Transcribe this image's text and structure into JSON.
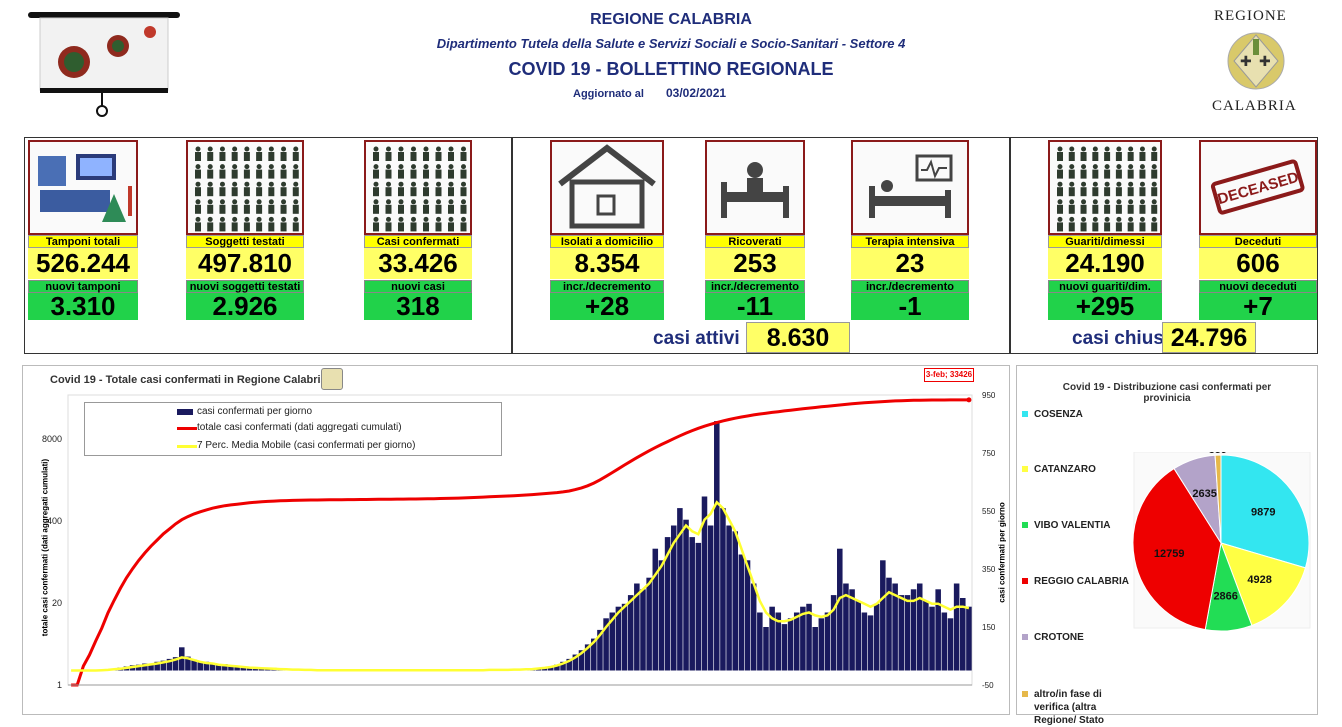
{
  "header": {
    "region": "REGIONE CALABRIA",
    "department": "Dipartimento Tutela della Salute e Servizi Sociali e Socio-Sanitari - Settore 4",
    "bulletin": "COVID 19 - BOLLETTINO REGIONALE",
    "updated_label": "Aggiornato al",
    "updated_date": "03/02/2021",
    "logo_top": "REGIONE",
    "logo_bottom": "CALABRIA"
  },
  "stats": {
    "tamponi": {
      "label": "Tamponi totali",
      "value": "526.244",
      "new_label": "nuovi tamponi",
      "new_value": "3.310"
    },
    "soggetti": {
      "label": "Soggetti testati",
      "value": "497.810",
      "new_label": "nuovi soggetti testati",
      "new_value": "2.926"
    },
    "casi": {
      "label": "Casi confermati",
      "value": "33.426",
      "new_label": "nuovi casi",
      "new_value": "318"
    },
    "isolati": {
      "label": "Isolati a domicilio",
      "value": "8.354",
      "new_label": "incr./decremento",
      "new_value": "+28"
    },
    "ricoverati": {
      "label": "Ricoverati",
      "value": "253",
      "new_label": "incr./decremento",
      "new_value": "-11"
    },
    "terapia": {
      "label": "Terapia intensiva",
      "value": "23",
      "new_label": "incr./decremento",
      "new_value": "-1"
    },
    "guariti": {
      "label": "Guariti/dimessi",
      "value": "24.190",
      "new_label": "nuovi guariti/dim.",
      "new_value": "+295"
    },
    "deceduti": {
      "label": "Deceduti",
      "value": "606",
      "new_label": "nuovi deceduti",
      "new_value": "+7"
    },
    "attivi": {
      "label": "casi attivi",
      "value": "8.630"
    },
    "chiusi": {
      "label": "casi chiusi",
      "value": "24.796"
    },
    "deceased_stamp": "DECEASED"
  },
  "chart_data": [
    {
      "type": "line",
      "title": "Covid 19 - Totale casi confermati in Regione Calabria",
      "ylabel": "totale casi confermati (dati aggregati cumulati)",
      "y2label": "casi confermati per giorno",
      "left_ticks": [
        "8000",
        "400",
        "20",
        "1"
      ],
      "right_ticks": [
        "950",
        "750",
        "550",
        "350",
        "150",
        "-50"
      ],
      "annotation": "3-feb; 33426",
      "series": [
        {
          "name": "casi confermati per giorno",
          "kind": "bar",
          "color": "#1a1a5e",
          "values": [
            0,
            0,
            0,
            0,
            0,
            2,
            4,
            6,
            10,
            14,
            18,
            20,
            24,
            22,
            30,
            34,
            40,
            46,
            80,
            48,
            38,
            28,
            30,
            26,
            20,
            22,
            18,
            16,
            14,
            10,
            12,
            10,
            8,
            9,
            7,
            5,
            4,
            3,
            2,
            2,
            1,
            1,
            1,
            1,
            0,
            1,
            1,
            0,
            1,
            0,
            0,
            1,
            0,
            0,
            1,
            1,
            0,
            0,
            1,
            0,
            1,
            1,
            0,
            1,
            1,
            2,
            1,
            2,
            2,
            1,
            1,
            2,
            3,
            2,
            4,
            5,
            8,
            10,
            14,
            20,
            30,
            40,
            55,
            70,
            90,
            110,
            140,
            180,
            200,
            220,
            230,
            260,
            300,
            280,
            320,
            420,
            380,
            460,
            500,
            560,
            520,
            460,
            440,
            600,
            500,
            860,
            560,
            500,
            480,
            400,
            380,
            300,
            200,
            150,
            220,
            200,
            160,
            180,
            200,
            220,
            230,
            150,
            180,
            200,
            260,
            420,
            300,
            280,
            240,
            200,
            190,
            230,
            380,
            320,
            300,
            260,
            260,
            280,
            300,
            240,
            220,
            280,
            200,
            180,
            300,
            250,
            220
          ]
        },
        {
          "name": "totale casi confermati (dati aggregati cumulati)",
          "kind": "line",
          "color": "#ee0000",
          "values": [
            1,
            1,
            2,
            3,
            5,
            8,
            14,
            22,
            34,
            50,
            70,
            95,
            125,
            160,
            200,
            250,
            300,
            360,
            420,
            470,
            520,
            560,
            600,
            640,
            670,
            700,
            720,
            740,
            760,
            780,
            795,
            810,
            820,
            830,
            840,
            845,
            850,
            855,
            860,
            862,
            864,
            866,
            868,
            870,
            872,
            874,
            876,
            878,
            880,
            882,
            884,
            886,
            888,
            890,
            892,
            894,
            896,
            898,
            900,
            905,
            910,
            915,
            920,
            925,
            930,
            940,
            950,
            960,
            970,
            980,
            990,
            1000,
            1010,
            1020,
            1035,
            1050,
            1070,
            1090,
            1110,
            1130,
            1160,
            1200,
            1260,
            1340,
            1450,
            1600,
            1800,
            2050,
            2350,
            2700,
            3100,
            3550,
            4050,
            4600,
            5200,
            5850,
            6550,
            7300,
            8100,
            9000,
            9950,
            10900,
            11850,
            12800,
            13700,
            14600,
            15500,
            16350,
            17150,
            17900,
            18600,
            19300,
            19950,
            20550,
            21150,
            21750,
            22350,
            22950,
            23550,
            24150,
            24750,
            25350,
            25950,
            26550,
            27150,
            27750,
            28350,
            28950,
            29500,
            30050,
            30550,
            31000,
            31450,
            31850,
            32200,
            32500,
            32750,
            32950,
            33100,
            33200,
            33280,
            33340,
            33380,
            33400,
            33410,
            33420,
            33426
          ]
        },
        {
          "name": "7 Perc. Media Mobile (casi confermati per giorno)",
          "kind": "line",
          "color": "#ffff33",
          "values": [
            0,
            0,
            0,
            0,
            0,
            1,
            2,
            4,
            6,
            9,
            12,
            15,
            18,
            21,
            24,
            28,
            32,
            38,
            45,
            42,
            36,
            30,
            26,
            24,
            20,
            18,
            16,
            14,
            12,
            10,
            9,
            8,
            7,
            6,
            5,
            4,
            3,
            3,
            2,
            2,
            1,
            1,
            1,
            1,
            1,
            1,
            1,
            1,
            1,
            1,
            1,
            1,
            1,
            1,
            1,
            1,
            1,
            1,
            1,
            1,
            1,
            1,
            1,
            1,
            1,
            1,
            1,
            1,
            2,
            2,
            2,
            2,
            3,
            3,
            4,
            5,
            7,
            9,
            12,
            17,
            24,
            33,
            45,
            60,
            78,
            98,
            122,
            150,
            175,
            200,
            220,
            240,
            260,
            280,
            300,
            330,
            360,
            400,
            440,
            470,
            500,
            480,
            470,
            520,
            540,
            580,
            560,
            520,
            480,
            420,
            360,
            300,
            240,
            200,
            180,
            170,
            170,
            175,
            185,
            195,
            200,
            190,
            185,
            190,
            210,
            250,
            260,
            250,
            240,
            230,
            220,
            230,
            250,
            270,
            260,
            250,
            240,
            240,
            250,
            240,
            230,
            230,
            220,
            210,
            220,
            220,
            215
          ]
        }
      ]
    },
    {
      "type": "pie",
      "title": "Covid 19 - Distribuzione casi confermati per provinicia",
      "categories": [
        "COSENZA",
        "CATANZARO",
        "VIBO VALENTIA",
        "REGGIO CALABRIA",
        "CROTONE",
        "altro/in fase di verifica (altra Regione/ Stato"
      ],
      "values": [
        9879,
        4928,
        2866,
        12759,
        2635,
        359
      ],
      "colors": [
        "#33e6f0",
        "#ffff44",
        "#22dd55",
        "#ee0000",
        "#b3a3c9",
        "#e6b84a"
      ]
    }
  ]
}
